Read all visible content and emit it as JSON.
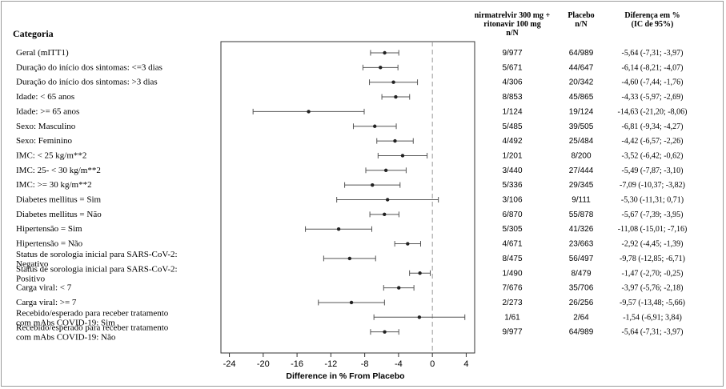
{
  "chart_data": {
    "type": "forest",
    "category_header": "Categoria",
    "column_headers": {
      "treatment": [
        "nirmatrelvir 300 mg +",
        "ritonavir 100 mg",
        "n/N"
      ],
      "placebo": [
        "Placebo",
        "n/N"
      ],
      "difference": [
        "Diferença em %",
        "(IC de 95%)"
      ]
    },
    "xlabel": "Difference in % From Placebo",
    "xlim": [
      -25,
      5
    ],
    "xticks": [
      -24,
      -20,
      -16,
      -12,
      -8,
      -4,
      0,
      4
    ],
    "reference_line": 0,
    "rows": [
      {
        "label": [
          "Geral (mITT1)"
        ],
        "estimate": -5.64,
        "ci_low": -7.31,
        "ci_high": -3.97,
        "treatment_nN": "9/977",
        "placebo_nN": "64/989",
        "diff_text": "-5,64 (-7,31; -3,97)"
      },
      {
        "label": [
          "Duração do início dos sintomas: <=3 dias"
        ],
        "estimate": -6.14,
        "ci_low": -8.21,
        "ci_high": -4.07,
        "treatment_nN": "5/671",
        "placebo_nN": "44/647",
        "diff_text": "-6,14 (-8,21; -4,07)"
      },
      {
        "label": [
          "Duração do início dos sintomas: >3 dias"
        ],
        "estimate": -4.6,
        "ci_low": -7.44,
        "ci_high": -1.76,
        "treatment_nN": "4/306",
        "placebo_nN": "20/342",
        "diff_text": "-4,60 (-7,44; -1,76)"
      },
      {
        "label": [
          "Idade: < 65 anos"
        ],
        "estimate": -4.33,
        "ci_low": -5.97,
        "ci_high": -2.69,
        "treatment_nN": "8/853",
        "placebo_nN": "45/865",
        "diff_text": "-4,33 (-5,97; -2,69)"
      },
      {
        "label": [
          "Idade: >= 65 anos"
        ],
        "estimate": -14.63,
        "ci_low": -21.2,
        "ci_high": -8.06,
        "treatment_nN": "1/124",
        "placebo_nN": "19/124",
        "diff_text": "-14,63 (-21,20; -8,06)"
      },
      {
        "label": [
          "Sexo: Masculino"
        ],
        "estimate": -6.81,
        "ci_low": -9.34,
        "ci_high": -4.27,
        "treatment_nN": "5/485",
        "placebo_nN": "39/505",
        "diff_text": "-6,81 (-9,34; -4,27)"
      },
      {
        "label": [
          "Sexo: Feminino"
        ],
        "estimate": -4.42,
        "ci_low": -6.57,
        "ci_high": -2.26,
        "treatment_nN": "4/492",
        "placebo_nN": "25/484",
        "diff_text": "-4,42 (-6,57; -2,26)"
      },
      {
        "label": [
          "IMC: < 25 kg/m**2"
        ],
        "estimate": -3.52,
        "ci_low": -6.42,
        "ci_high": -0.62,
        "treatment_nN": "1/201",
        "placebo_nN": "8/200",
        "diff_text": "-3,52 (-6,42; -0,62)"
      },
      {
        "label": [
          "IMC: 25- < 30 kg/m**2"
        ],
        "estimate": -5.49,
        "ci_low": -7.87,
        "ci_high": -3.1,
        "treatment_nN": "3/440",
        "placebo_nN": "27/444",
        "diff_text": "-5,49 (-7,87; -3,10)"
      },
      {
        "label": [
          "IMC: >= 30 kg/m**2"
        ],
        "estimate": -7.09,
        "ci_low": -10.37,
        "ci_high": -3.82,
        "treatment_nN": "5/336",
        "placebo_nN": "29/345",
        "diff_text": "-7,09 (-10,37; -3,82)"
      },
      {
        "label": [
          "Diabetes mellitus = Sim"
        ],
        "estimate": -5.3,
        "ci_low": -11.31,
        "ci_high": 0.71,
        "treatment_nN": "3/106",
        "placebo_nN": "9/111",
        "diff_text": "-5,30 (-11,31; 0,71)"
      },
      {
        "label": [
          "Diabetes mellitus = Não"
        ],
        "estimate": -5.67,
        "ci_low": -7.39,
        "ci_high": -3.95,
        "treatment_nN": "6/870",
        "placebo_nN": "55/878",
        "diff_text": "-5,67 (-7,39; -3,95)"
      },
      {
        "label": [
          "Hipertensão = Sim"
        ],
        "estimate": -11.08,
        "ci_low": -15.01,
        "ci_high": -7.16,
        "treatment_nN": "5/305",
        "placebo_nN": "41/326",
        "diff_text": "-11,08 (-15,01; -7,16)"
      },
      {
        "label": [
          "Hipertensão = Não"
        ],
        "estimate": -2.92,
        "ci_low": -4.45,
        "ci_high": -1.39,
        "treatment_nN": "4/671",
        "placebo_nN": "23/663",
        "diff_text": "-2,92 (-4,45; -1,39)"
      },
      {
        "label": [
          "Status de sorologia inicial para SARS-CoV-2:",
          "Negativo"
        ],
        "estimate": -9.78,
        "ci_low": -12.85,
        "ci_high": -6.71,
        "treatment_nN": "8/475",
        "placebo_nN": "56/497",
        "diff_text": "-9,78 (-12,85; -6,71)"
      },
      {
        "label": [
          "Status de sorologia inicial para SARS-CoV-2:",
          "Positivo"
        ],
        "estimate": -1.47,
        "ci_low": -2.7,
        "ci_high": -0.25,
        "treatment_nN": "1/490",
        "placebo_nN": "8/479",
        "diff_text": "-1,47 (-2,70; -0,25)"
      },
      {
        "label": [
          "Carga viral: < 7"
        ],
        "estimate": -3.97,
        "ci_low": -5.76,
        "ci_high": -2.18,
        "treatment_nN": "7/676",
        "placebo_nN": "35/706",
        "diff_text": "-3,97 (-5,76; -2,18)"
      },
      {
        "label": [
          "Carga viral: >= 7"
        ],
        "estimate": -9.57,
        "ci_low": -13.48,
        "ci_high": -5.66,
        "treatment_nN": "2/273",
        "placebo_nN": "26/256",
        "diff_text": "-9,57 (-13,48; -5,66)"
      },
      {
        "label": [
          "Recebido/esperado para receber tratamento",
          "com mAbs COVID-19: Sim"
        ],
        "estimate": -1.54,
        "ci_low": -6.91,
        "ci_high": 3.84,
        "treatment_nN": "1/61",
        "placebo_nN": "2/64",
        "diff_text": "-1,54 (-6,91; 3,84)"
      },
      {
        "label": [
          "Recebido/esperado para receber tratamento",
          "com mAbs COVID-19: Não"
        ],
        "estimate": -5.64,
        "ci_low": -7.31,
        "ci_high": -3.97,
        "treatment_nN": "9/977",
        "placebo_nN": "64/989",
        "diff_text": "-5,64 (-7,31; -3,97)"
      }
    ],
    "colors": {
      "marker": "#222222",
      "ci_line": "#555555",
      "reference_line": "#999999",
      "axis": "#333333"
    }
  }
}
